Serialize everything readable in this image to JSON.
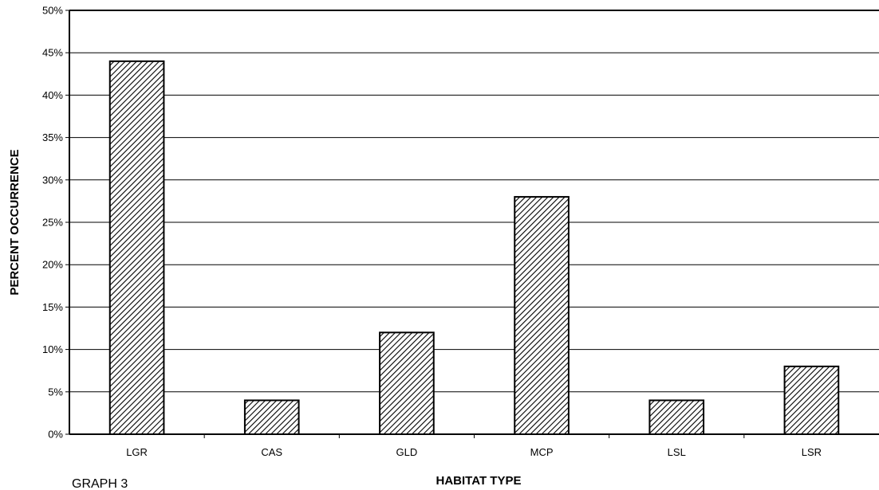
{
  "chart_data": {
    "type": "bar",
    "categories": [
      "LGR",
      "CAS",
      "GLD",
      "MCP",
      "LSL",
      "LSR"
    ],
    "values": [
      44,
      4,
      12,
      28,
      4,
      8
    ],
    "title": "",
    "xlabel": "HABITAT TYPE",
    "ylabel": "PERCENT OCCURRENCE",
    "ylim": [
      0,
      50
    ],
    "y_ticks": [
      "0%",
      "5%",
      "10%",
      "15%",
      "20%",
      "25%",
      "30%",
      "35%",
      "40%",
      "45%",
      "50%"
    ],
    "grid": true,
    "legend": "none",
    "bar_fill": "diagonal-hatch",
    "colors": {
      "bar_stroke": "#000000",
      "hatch": "#000000",
      "background": "#ffffff",
      "grid": "#000000"
    }
  },
  "caption": "GRAPH 3"
}
